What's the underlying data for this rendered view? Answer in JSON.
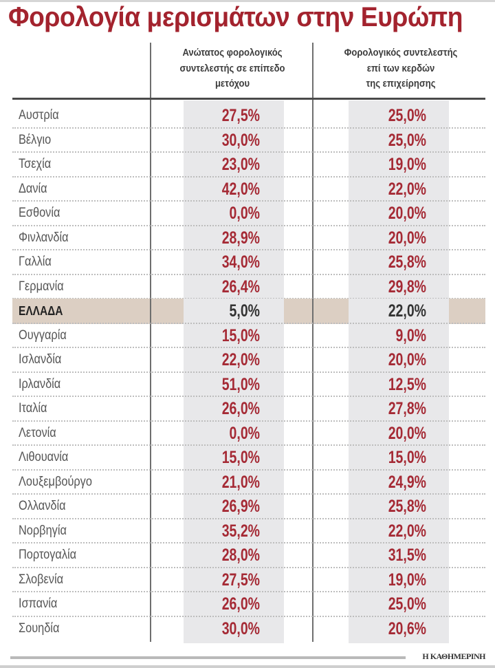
{
  "title": "Φορολογία μερισμάτων στην Ευρώπη",
  "columns": {
    "country": "",
    "col1": [
      "Ανώτατος φορολογικός",
      "συντελεστής σε επίπεδο",
      "μετόχου"
    ],
    "col2": [
      "Φορολογικός συντελεστής",
      "επί των κερδών",
      "της επιχείρησης"
    ]
  },
  "rows": [
    {
      "country": "Αυστρία",
      "shareholder": "27,5%",
      "corporate": "25,0%"
    },
    {
      "country": "Βέλγιο",
      "shareholder": "30,0%",
      "corporate": "25,0%"
    },
    {
      "country": "Τσεχία",
      "shareholder": "23,0%",
      "corporate": "19,0%"
    },
    {
      "country": "Δανία",
      "shareholder": "42,0%",
      "corporate": "22,0%"
    },
    {
      "country": "Εσθονία",
      "shareholder": "0,0%",
      "corporate": "20,0%"
    },
    {
      "country": "Φινλανδία",
      "shareholder": "28,9%",
      "corporate": "20,0%"
    },
    {
      "country": "Γαλλία",
      "shareholder": "34,0%",
      "corporate": "25,8%"
    },
    {
      "country": "Γερμανία",
      "shareholder": "26,4%",
      "corporate": "29,8%"
    },
    {
      "country": "ΕΛΛΑΔΑ",
      "shareholder": "5,0%",
      "corporate": "22,0%",
      "highlight": true
    },
    {
      "country": "Ουγγαρία",
      "shareholder": "15,0%",
      "corporate": "9,0%"
    },
    {
      "country": "Ισλανδία",
      "shareholder": "22,0%",
      "corporate": "20,0%"
    },
    {
      "country": "Ιρλανδία",
      "shareholder": "51,0%",
      "corporate": "12,5%"
    },
    {
      "country": "Ιταλία",
      "shareholder": "26,0%",
      "corporate": "27,8%"
    },
    {
      "country": "Λετονία",
      "shareholder": "0,0%",
      "corporate": "20,0%"
    },
    {
      "country": "Λιθουανία",
      "shareholder": "15,0%",
      "corporate": "15,0%"
    },
    {
      "country": "Λουξεμβούργο",
      "shareholder": "21,0%",
      "corporate": "24,9%"
    },
    {
      "country": "Ολλανδία",
      "shareholder": "26,9%",
      "corporate": "25,8%"
    },
    {
      "country": "Νορβηγία",
      "shareholder": "35,2%",
      "corporate": "22,0%"
    },
    {
      "country": "Πορτογαλία",
      "shareholder": "28,0%",
      "corporate": "31,5%"
    },
    {
      "country": "Σλοβενία",
      "shareholder": "27,5%",
      "corporate": "19,0%"
    },
    {
      "country": "Ισπανία",
      "shareholder": "26,0%",
      "corporate": "25,0%"
    },
    {
      "country": "Σουηδία",
      "shareholder": "30,0%",
      "corporate": "20,6%"
    }
  ],
  "source": "Η ΚΑΘΗΜΕΡΙΝΗ",
  "colors": {
    "title": "#a3232e",
    "values": "#a52a35",
    "highlight_row": "#dccfc3",
    "column_shade": "#e8e8ea"
  },
  "chart_data": {
    "type": "table",
    "title": "Φορολογία μερισμάτων στην Ευρώπη",
    "columns": [
      "",
      "Ανώτατος φορολογικός συντελεστής σε επίπεδο μετόχου",
      "Φορολογικός συντελεστής επί των κερδών της επιχείρησης"
    ],
    "categories": [
      "Αυστρία",
      "Βέλγιο",
      "Τσεχία",
      "Δανία",
      "Εσθονία",
      "Φινλανδία",
      "Γαλλία",
      "Γερμανία",
      "ΕΛΛΑΔΑ",
      "Ουγγαρία",
      "Ισλανδία",
      "Ιρλανδία",
      "Ιταλία",
      "Λετονία",
      "Λιθουανία",
      "Λουξεμβούργο",
      "Ολλανδία",
      "Νορβηγία",
      "Πορτογαλία",
      "Σλοβενία",
      "Ισπανία",
      "Σουηδία"
    ],
    "series": [
      {
        "name": "Ανώτατος φορολογικός συντελεστής σε επίπεδο μετόχου",
        "values": [
          27.5,
          30.0,
          23.0,
          42.0,
          0.0,
          28.9,
          34.0,
          26.4,
          5.0,
          15.0,
          22.0,
          51.0,
          26.0,
          0.0,
          15.0,
          21.0,
          26.9,
          35.2,
          28.0,
          27.5,
          26.0,
          30.0
        ]
      },
      {
        "name": "Φορολογικός συντελεστής επί των κερδών της επιχείρησης",
        "values": [
          25.0,
          25.0,
          19.0,
          22.0,
          20.0,
          20.0,
          25.8,
          29.8,
          22.0,
          9.0,
          20.0,
          12.5,
          27.8,
          20.0,
          15.0,
          24.9,
          25.8,
          22.0,
          31.5,
          19.0,
          25.0,
          20.6
        ]
      }
    ],
    "unit": "%",
    "highlighted_category": "ΕΛΛΑΔΑ",
    "source": "Η ΚΑΘΗΜΕΡΙΝΗ"
  }
}
